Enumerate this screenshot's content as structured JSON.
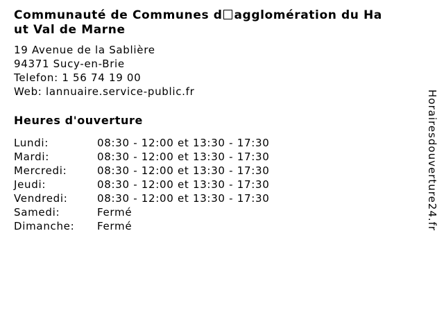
{
  "page": {
    "background_color": "#ffffff",
    "text_color": "#000000"
  },
  "title": {
    "line1_before_box": "Communauté de Communes d",
    "line1_after_box": "agglomération du Ha",
    "line2": "ut Val de Marne"
  },
  "contact": {
    "street": "19 Avenue de la Sablière",
    "city": "94371 Sucy-en-Brie",
    "phone_label": "Telefon:",
    "phone": "1 56 74 19 00",
    "web_label": "Web:",
    "web": "lannuaire.service-public.fr"
  },
  "hours": {
    "heading": "Heures d'ouverture",
    "rows": [
      {
        "day": "Lundi:",
        "hours": "08:30 - 12:00 et 13:30 - 17:30"
      },
      {
        "day": "Mardi:",
        "hours": "08:30 - 12:00 et 13:30 - 17:30"
      },
      {
        "day": "Mercredi:",
        "hours": "08:30 - 12:00 et 13:30 - 17:30"
      },
      {
        "day": "Jeudi:",
        "hours": "08:30 - 12:00 et 13:30 - 17:30"
      },
      {
        "day": "Vendredi:",
        "hours": "08:30 - 12:00 et 13:30 - 17:30"
      },
      {
        "day": "Samedi:",
        "hours": "Fermé"
      },
      {
        "day": "Dimanche:",
        "hours": "Fermé"
      }
    ]
  },
  "watermark": {
    "text": "Horairesdouverture24.fr"
  }
}
